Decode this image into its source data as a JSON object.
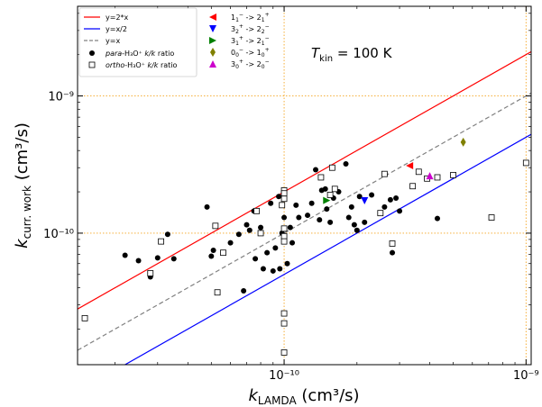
{
  "chart_data": {
    "type": "scatter",
    "xlabel": "k_LAMDA (cm³/s)",
    "ylabel": "k_curr. work (cm³/s)",
    "xlabel_parts": {
      "main": "k",
      "sub": "LAMDA",
      "unit": " (cm³/s)"
    },
    "ylabel_parts": {
      "main": "k",
      "sub": "curr. work",
      "unit": " (cm³/s)"
    },
    "x_scale": "log",
    "y_scale": "log",
    "xlim": [
      1.4e-11,
      1.05e-09
    ],
    "ylim": [
      1.1e-11,
      4.5e-09
    ],
    "x_ticks": [
      {
        "value": 1e-10,
        "label": "10⁻¹⁰"
      },
      {
        "value": 1e-09,
        "label": "10⁻⁹"
      }
    ],
    "y_ticks": [
      {
        "value": 1e-10,
        "label": "10⁻¹⁰"
      },
      {
        "value": 1e-09,
        "label": "10⁻⁹"
      }
    ],
    "reference_lines": {
      "x": [
        1e-10,
        1e-09
      ],
      "y": [
        1e-10,
        1e-09
      ],
      "color": "#f5a623",
      "style": "dotted"
    },
    "annotation": {
      "main": "T",
      "sub": "kin",
      "rest": " = 100 K"
    },
    "legend_location": "top-left",
    "lines": [
      {
        "name": "y=2*x",
        "factor": 2,
        "color": "#ff0000",
        "style": "solid"
      },
      {
        "name": "y=x/2",
        "factor": 0.5,
        "color": "#0000ff",
        "style": "solid"
      },
      {
        "name": "y=x",
        "factor": 1,
        "color": "#808080",
        "style": "dashed"
      }
    ],
    "series": [
      {
        "name": "para-H₃O⁺ k/k ratio",
        "label_parts": {
          "italic": "para",
          "mid": "-H₃O⁺ ",
          "italic2": "k/k",
          "end": " ratio"
        },
        "marker": "filled-circle",
        "color": "#000000",
        "points": [
          [
            2.2e-11,
            6.9e-11
          ],
          [
            2.5e-11,
            6.3e-11
          ],
          [
            2.8e-11,
            4.8e-11
          ],
          [
            3e-11,
            6.6e-11
          ],
          [
            3.3e-11,
            9.8e-11
          ],
          [
            3.5e-11,
            6.5e-11
          ],
          [
            4.8e-11,
            1.55e-10
          ],
          [
            5e-11,
            6.8e-11
          ],
          [
            5.1e-11,
            7.5e-11
          ],
          [
            6e-11,
            8.5e-11
          ],
          [
            6.5e-11,
            9.8e-11
          ],
          [
            6.8e-11,
            3.8e-11
          ],
          [
            7e-11,
            1.15e-10
          ],
          [
            7.2e-11,
            1.05e-10
          ],
          [
            7.5e-11,
            1.45e-10
          ],
          [
            7.6e-11,
            6.5e-11
          ],
          [
            8e-11,
            1.1e-10
          ],
          [
            8.2e-11,
            5.5e-11
          ],
          [
            8.5e-11,
            7.2e-11
          ],
          [
            8.8e-11,
            1.65e-10
          ],
          [
            9e-11,
            5.3e-11
          ],
          [
            9.2e-11,
            7.8e-11
          ],
          [
            9.5e-11,
            1.85e-10
          ],
          [
            9.6e-11,
            5.5e-11
          ],
          [
            9.8e-11,
            1e-10
          ],
          [
            1e-10,
            1.3e-10
          ],
          [
            1.03e-10,
            6e-11
          ],
          [
            1.06e-10,
            1.1e-10
          ],
          [
            1.08e-10,
            8.5e-11
          ],
          [
            1.12e-10,
            1.6e-10
          ],
          [
            1.15e-10,
            1.3e-10
          ],
          [
            1.25e-10,
            1.35e-10
          ],
          [
            1.3e-10,
            1.65e-10
          ],
          [
            1.35e-10,
            2.9e-10
          ],
          [
            1.4e-10,
            1.25e-10
          ],
          [
            1.43e-10,
            2.05e-10
          ],
          [
            1.48e-10,
            2.1e-10
          ],
          [
            1.5e-10,
            1.5e-10
          ],
          [
            1.55e-10,
            1.2e-10
          ],
          [
            1.6e-10,
            1.8e-10
          ],
          [
            1.68e-10,
            2e-10
          ],
          [
            1.8e-10,
            3.2e-10
          ],
          [
            1.85e-10,
            1.3e-10
          ],
          [
            1.9e-10,
            1.55e-10
          ],
          [
            1.95e-10,
            1.15e-10
          ],
          [
            2e-10,
            1.05e-10
          ],
          [
            2.05e-10,
            1.85e-10
          ],
          [
            2.15e-10,
            1.2e-10
          ],
          [
            2.3e-10,
            1.9e-10
          ],
          [
            2.6e-10,
            1.55e-10
          ],
          [
            2.75e-10,
            1.75e-10
          ],
          [
            2.8e-10,
            7.2e-11
          ],
          [
            2.9e-10,
            1.8e-10
          ],
          [
            3e-10,
            1.45e-10
          ],
          [
            4.3e-10,
            1.28e-10
          ]
        ]
      },
      {
        "name": "ortho-H₃O⁺ k/k ratio",
        "label_parts": {
          "italic": "ortho",
          "mid": "-H₃O⁺ ",
          "italic2": "k/k",
          "end": " ratio"
        },
        "marker": "open-square",
        "color": "#000000",
        "points": [
          [
            1.5e-11,
            2.4e-11
          ],
          [
            2.8e-11,
            5.1e-11
          ],
          [
            3.1e-11,
            8.7e-11
          ],
          [
            5.2e-11,
            1.13e-10
          ],
          [
            5.3e-11,
            3.7e-11
          ],
          [
            5.6e-11,
            7.2e-11
          ],
          [
            7.7e-11,
            1.45e-10
          ],
          [
            8e-11,
            1e-10
          ],
          [
            9.8e-11,
            1.6e-10
          ],
          [
            1e-10,
            2.05e-10
          ],
          [
            1e-10,
            1.95e-10
          ],
          [
            1e-10,
            1.78e-10
          ],
          [
            1e-10,
            1.08e-10
          ],
          [
            1e-10,
            9.5e-11
          ],
          [
            1e-10,
            8.7e-11
          ],
          [
            1e-10,
            2.6e-11
          ],
          [
            1e-10,
            2.2e-11
          ],
          [
            1e-10,
            1.35e-11
          ],
          [
            1.42e-10,
            2.55e-10
          ],
          [
            1.55e-10,
            1.9e-10
          ],
          [
            1.58e-10,
            3e-10
          ],
          [
            1.62e-10,
            2.1e-10
          ],
          [
            2.5e-10,
            1.4e-10
          ],
          [
            2.6e-10,
            2.7e-10
          ],
          [
            2.8e-10,
            8.4e-11
          ],
          [
            3.4e-10,
            2.2e-10
          ],
          [
            3.6e-10,
            2.8e-10
          ],
          [
            3.9e-10,
            2.5e-10
          ],
          [
            4.3e-10,
            2.55e-10
          ],
          [
            5e-10,
            2.65e-10
          ],
          [
            7.2e-10,
            1.3e-10
          ],
          [
            1e-09,
            3.25e-10
          ]
        ]
      },
      {
        "name": "1₁⁻ -> 2₁⁺",
        "label_parts": {
          "a": "1",
          "a_sub": "1",
          "a_sup": "−",
          "b": "2",
          "b_sub": "1",
          "b_sup": "+"
        },
        "marker": "triangle-left",
        "color": "#ff0000",
        "points": [
          [
            3.3e-10,
            3.1e-10
          ]
        ]
      },
      {
        "name": "3₂⁺ -> 2₂⁻",
        "label_parts": {
          "a": "3",
          "a_sub": "2",
          "a_sup": "+",
          "b": "2",
          "b_sub": "2",
          "b_sup": "−"
        },
        "marker": "triangle-down",
        "color": "#0000ff",
        "points": [
          [
            2.15e-10,
            1.72e-10
          ]
        ]
      },
      {
        "name": "3₁⁺ -> 2₁⁻",
        "label_parts": {
          "a": "3",
          "a_sub": "1",
          "a_sup": "+",
          "b": "2",
          "b_sub": "1",
          "b_sup": "−"
        },
        "marker": "triangle-right",
        "color": "#008000",
        "points": [
          [
            1.5e-10,
            1.73e-10
          ]
        ]
      },
      {
        "name": "0₀⁻ -> 1₀⁺",
        "label_parts": {
          "a": "0",
          "a_sub": "0",
          "a_sup": "−",
          "b": "1",
          "b_sub": "0",
          "b_sup": "+"
        },
        "marker": "diamond",
        "color": "#808000",
        "points": [
          [
            5.5e-10,
            4.6e-10
          ]
        ]
      },
      {
        "name": "3₀⁺ -> 2₀⁻",
        "label_parts": {
          "a": "3",
          "a_sub": "0",
          "a_sup": "+",
          "b": "2",
          "b_sub": "0",
          "b_sup": "−"
        },
        "marker": "triangle-up",
        "color": "#cc00cc",
        "points": [
          [
            4e-10,
            2.62e-10
          ]
        ]
      }
    ]
  }
}
